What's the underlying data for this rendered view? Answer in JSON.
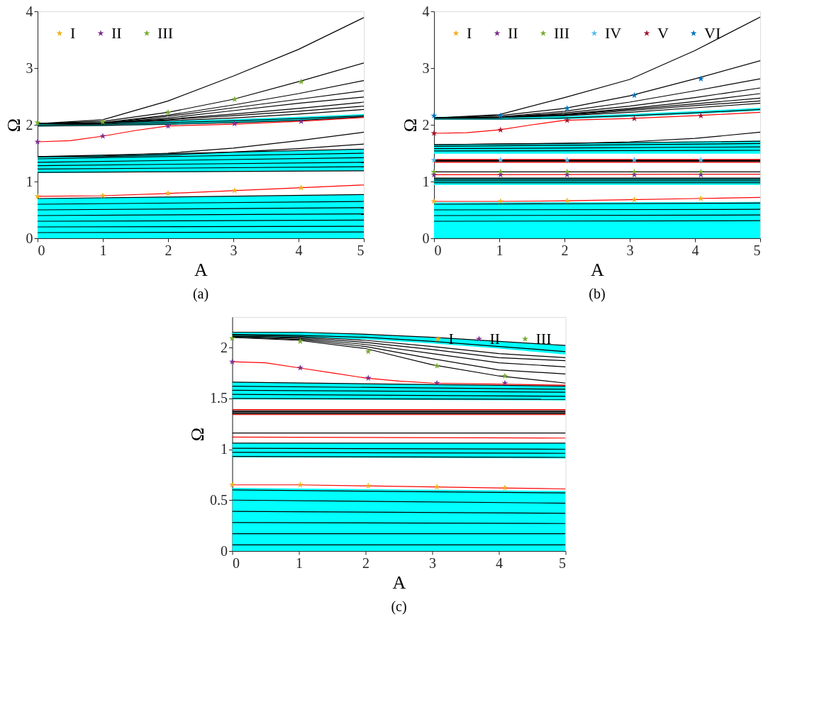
{
  "chart_data": [
    {
      "type": "line",
      "title": "(a)",
      "xlabel": "A",
      "ylabel": "Ω",
      "xlim": [
        0,
        5
      ],
      "ylim": [
        0,
        4
      ],
      "xticks": [
        0,
        1,
        2,
        3,
        4,
        5
      ],
      "yticks": [
        0,
        1,
        2,
        3,
        4
      ],
      "legend": "top left",
      "line_style": "solid",
      "series": [
        {
          "type": "line",
          "color": "#000000",
          "x": [
            0,
            5
          ],
          "values": [
            0.1,
            0.11
          ],
          "lower": [
            0,
            0
          ],
          "upper": [
            0.7,
            0.77
          ]
        },
        {
          "type": "line",
          "color": "#000000",
          "x": [
            0,
            5
          ],
          "values": [
            0.2,
            0.21
          ]
        },
        {
          "type": "line",
          "color": "#000000",
          "x": [
            0,
            5
          ],
          "values": [
            0.3,
            0.32
          ]
        },
        {
          "type": "line",
          "color": "#000000",
          "x": [
            0,
            5
          ],
          "values": [
            0.4,
            0.43
          ]
        },
        {
          "type": "line",
          "color": "#000000",
          "x": [
            0,
            5
          ],
          "values": [
            0.5,
            0.54
          ]
        },
        {
          "type": "line",
          "color": "#000000",
          "x": [
            0,
            5
          ],
          "values": [
            0.6,
            0.65
          ]
        },
        {
          "type": "line",
          "color": "#000000",
          "x": [
            0,
            5
          ],
          "values": [
            0.7,
            0.77
          ]
        },
        {
          "type": "line",
          "color": "#000000",
          "x": [
            0,
            5
          ],
          "values": [
            1.16,
            1.19
          ],
          "lower": [
            1.15,
            1.19
          ],
          "upper": [
            1.44,
            1.57
          ]
        },
        {
          "type": "line",
          "color": "#000000",
          "x": [
            0,
            5
          ],
          "values": [
            1.22,
            1.26
          ]
        },
        {
          "type": "line",
          "color": "#000000",
          "x": [
            0,
            5
          ],
          "values": [
            1.28,
            1.34
          ]
        },
        {
          "type": "line",
          "color": "#000000",
          "x": [
            0,
            5
          ],
          "values": [
            1.34,
            1.42
          ]
        },
        {
          "type": "line",
          "color": "#000000",
          "x": [
            0,
            5
          ],
          "values": [
            1.4,
            1.5
          ]
        },
        {
          "type": "line",
          "color": "#000000",
          "x": [
            0,
            5
          ],
          "values": [
            1.44,
            1.57
          ]
        },
        {
          "type": "line",
          "color": "#000000",
          "x": [
            0,
            1,
            2,
            3,
            4,
            5
          ],
          "values": [
            1.44,
            1.44,
            1.47,
            1.52,
            1.58,
            1.66
          ]
        },
        {
          "type": "line",
          "color": "#000000",
          "x": [
            0,
            1,
            2,
            3,
            4,
            5
          ],
          "values": [
            1.44,
            1.45,
            1.5,
            1.59,
            1.72,
            1.87
          ]
        },
        {
          "type": "line",
          "color": "#000000",
          "x": [
            0,
            1,
            2,
            3,
            4,
            5
          ],
          "values": [
            1.98,
            1.99,
            2.01,
            2.04,
            2.08,
            2.14
          ],
          "lower": [
            1.97,
            1.98,
            2.0,
            2.03,
            2.07,
            2.13
          ],
          "upper": [
            2.03,
            2.04,
            2.07,
            2.1,
            2.14,
            2.19
          ]
        },
        {
          "type": "line",
          "color": "#000000",
          "x": [
            0,
            1,
            2,
            3,
            4,
            5
          ],
          "values": [
            2.0,
            2.01,
            2.04,
            2.07,
            2.11,
            2.16
          ]
        },
        {
          "type": "line",
          "color": "#000000",
          "x": [
            0,
            1,
            2,
            3,
            4,
            5
          ],
          "values": [
            2.02,
            2.03,
            2.07,
            2.12,
            2.19,
            2.27
          ]
        },
        {
          "type": "line",
          "color": "#000000",
          "x": [
            0,
            1,
            2,
            3,
            4,
            5
          ],
          "values": [
            2.02,
            2.03,
            2.09,
            2.16,
            2.24,
            2.33
          ]
        },
        {
          "type": "line",
          "color": "#000000",
          "x": [
            0,
            1,
            2,
            3,
            4,
            5
          ],
          "values": [
            2.02,
            2.03,
            2.1,
            2.19,
            2.29,
            2.4
          ]
        },
        {
          "type": "line",
          "color": "#000000",
          "x": [
            0,
            1,
            2,
            3,
            4,
            5
          ],
          "values": [
            2.02,
            2.03,
            2.12,
            2.25,
            2.38,
            2.49
          ]
        },
        {
          "type": "line",
          "color": "#000000",
          "x": [
            0,
            1,
            2,
            3,
            4,
            5
          ],
          "values": [
            2.02,
            2.03,
            2.15,
            2.3,
            2.45,
            2.6
          ]
        },
        {
          "type": "line",
          "color": "#000000",
          "x": [
            0,
            1,
            2,
            3,
            4,
            5
          ],
          "values": [
            2.02,
            2.04,
            2.17,
            2.35,
            2.55,
            2.78
          ]
        },
        {
          "type": "line",
          "color": "#000000",
          "x": [
            0,
            1,
            2,
            3,
            4,
            5
          ],
          "values": [
            2.02,
            2.06,
            2.22,
            2.45,
            2.76,
            3.09
          ]
        },
        {
          "type": "line",
          "color": "#000000",
          "x": [
            0,
            1,
            2,
            3,
            4,
            5
          ],
          "values": [
            2.02,
            2.09,
            2.42,
            2.86,
            3.33,
            3.89
          ]
        },
        {
          "type": "line",
          "color": "#ff0000",
          "x": [
            0,
            1,
            2,
            3,
            4,
            5
          ],
          "values": [
            0.74,
            0.75,
            0.79,
            0.84,
            0.89,
            0.94
          ]
        },
        {
          "type": "line",
          "color": "#ff0000",
          "x": [
            0,
            0.5,
            1,
            1.5,
            2,
            3,
            4,
            5
          ],
          "values": [
            1.7,
            1.72,
            1.8,
            1.9,
            1.98,
            2.01,
            2.06,
            2.13
          ]
        },
        {
          "type": "scatter",
          "name": "I",
          "color": "#edb120",
          "marker": "star",
          "x": [
            0,
            1,
            2,
            3.02,
            4.04
          ],
          "values": [
            0.74,
            0.75,
            0.79,
            0.84,
            0.89
          ]
        },
        {
          "type": "scatter",
          "name": "II",
          "color": "#7e2f8e",
          "marker": "star",
          "x": [
            0,
            1,
            2,
            3.02,
            4.04
          ],
          "values": [
            1.7,
            1.8,
            1.98,
            2.02,
            2.06
          ]
        },
        {
          "type": "scatter",
          "name": "III",
          "color": "#77ac30",
          "marker": "star",
          "x": [
            0,
            1,
            2,
            3.02,
            4.04
          ],
          "values": [
            2.04,
            2.05,
            2.22,
            2.45,
            2.76
          ]
        }
      ]
    },
    {
      "type": "line",
      "title": "(b)",
      "xlabel": "A",
      "ylabel": "Ω",
      "xlim": [
        0,
        5
      ],
      "ylim": [
        0,
        4
      ],
      "xticks": [
        0,
        1,
        2,
        3,
        4,
        5
      ],
      "yticks": [
        0,
        1,
        2,
        3,
        4
      ],
      "legend": "top left",
      "line_style": "solid",
      "series": [
        {
          "type": "line",
          "color": "#000000",
          "x": [
            0,
            5
          ],
          "values": [
            0.3,
            0.31
          ],
          "lower": [
            0,
            0
          ],
          "upper": [
            0.63,
            0.64
          ]
        },
        {
          "type": "line",
          "color": "#000000",
          "x": [
            0,
            5
          ],
          "values": [
            0.4,
            0.41
          ]
        },
        {
          "type": "line",
          "color": "#000000",
          "x": [
            0,
            5
          ],
          "values": [
            0.5,
            0.51
          ]
        },
        {
          "type": "line",
          "color": "#000000",
          "x": [
            0,
            5
          ],
          "values": [
            0.6,
            0.62
          ]
        },
        {
          "type": "line",
          "color": "#000000",
          "x": [
            0,
            5
          ],
          "values": [
            0.98,
            0.98
          ],
          "lower": [
            0.94,
            0.94
          ],
          "upper": [
            1.06,
            1.06
          ]
        },
        {
          "type": "line",
          "color": "#000000",
          "x": [
            0,
            5
          ],
          "values": [
            1.01,
            1.01
          ]
        },
        {
          "type": "line",
          "color": "#000000",
          "x": [
            0,
            5
          ],
          "values": [
            1.04,
            1.04
          ]
        },
        {
          "type": "line",
          "color": "#000000",
          "x": [
            0,
            5
          ],
          "values": [
            1.06,
            1.06
          ]
        },
        {
          "type": "line",
          "color": "#000000",
          "x": [
            0,
            5
          ],
          "values": [
            1.17,
            1.17
          ]
        },
        {
          "type": "line",
          "color": "#000000",
          "x": [
            0,
            5
          ],
          "values": [
            1.35,
            1.35
          ]
        },
        {
          "type": "line",
          "color": "#000000",
          "x": [
            0,
            5
          ],
          "values": [
            1.36,
            1.36
          ]
        },
        {
          "type": "line",
          "color": "#000000",
          "x": [
            0,
            5
          ],
          "values": [
            1.37,
            1.37
          ]
        },
        {
          "type": "line",
          "color": "#000000",
          "x": [
            0,
            5
          ],
          "values": [
            1.38,
            1.38
          ]
        },
        {
          "type": "line",
          "color": "#000000",
          "x": [
            0,
            5
          ],
          "values": [
            1.54,
            1.55
          ],
          "lower": [
            1.49,
            1.49
          ],
          "upper": [
            1.65,
            1.72
          ]
        },
        {
          "type": "line",
          "color": "#000000",
          "x": [
            0,
            5
          ],
          "values": [
            1.58,
            1.61
          ]
        },
        {
          "type": "line",
          "color": "#000000",
          "x": [
            0,
            5
          ],
          "values": [
            1.62,
            1.67
          ]
        },
        {
          "type": "line",
          "color": "#000000",
          "x": [
            0,
            5
          ],
          "values": [
            1.65,
            1.71
          ]
        },
        {
          "type": "line",
          "color": "#000000",
          "x": [
            0,
            1,
            2,
            3,
            4,
            5
          ],
          "values": [
            1.65,
            1.66,
            1.67,
            1.7,
            1.76,
            1.87
          ]
        },
        {
          "type": "line",
          "color": "#000000",
          "x": [
            0,
            1,
            2,
            3,
            4,
            5
          ],
          "values": [
            2.1,
            2.1,
            2.12,
            2.16,
            2.21,
            2.27
          ],
          "lower": [
            2.09,
            2.09,
            2.1,
            2.14,
            2.19,
            2.25
          ],
          "upper": [
            2.14,
            2.14,
            2.15,
            2.19,
            2.24,
            2.3
          ]
        },
        {
          "type": "line",
          "color": "#000000",
          "x": [
            0,
            1,
            2,
            3,
            4,
            5
          ],
          "values": [
            2.12,
            2.13,
            2.16,
            2.22,
            2.3,
            2.38
          ]
        },
        {
          "type": "line",
          "color": "#000000",
          "x": [
            0,
            1,
            2,
            3,
            4,
            5
          ],
          "values": [
            2.12,
            2.13,
            2.17,
            2.25,
            2.34,
            2.42
          ]
        },
        {
          "type": "line",
          "color": "#000000",
          "x": [
            0,
            1,
            2,
            3,
            4,
            5
          ],
          "values": [
            2.12,
            2.13,
            2.18,
            2.27,
            2.37,
            2.47
          ]
        },
        {
          "type": "line",
          "color": "#000000",
          "x": [
            0,
            1,
            2,
            3,
            4,
            5
          ],
          "values": [
            2.12,
            2.13,
            2.19,
            2.29,
            2.41,
            2.55
          ]
        },
        {
          "type": "line",
          "color": "#000000",
          "x": [
            0,
            1,
            2,
            3,
            4,
            5
          ],
          "values": [
            2.12,
            2.13,
            2.21,
            2.33,
            2.48,
            2.65
          ]
        },
        {
          "type": "line",
          "color": "#000000",
          "x": [
            0,
            1,
            2,
            3,
            4,
            5
          ],
          "values": [
            2.12,
            2.14,
            2.24,
            2.4,
            2.6,
            2.81
          ]
        },
        {
          "type": "line",
          "color": "#000000",
          "x": [
            0,
            1,
            2,
            3,
            4,
            5
          ],
          "values": [
            2.12,
            2.16,
            2.29,
            2.51,
            2.81,
            3.13
          ]
        },
        {
          "type": "line",
          "color": "#000000",
          "x": [
            0,
            1,
            2,
            3,
            4,
            5
          ],
          "values": [
            2.12,
            2.18,
            2.48,
            2.8,
            3.31,
            3.9
          ]
        },
        {
          "type": "line",
          "color": "#ff0000",
          "x": [
            0,
            1,
            2,
            3,
            4,
            5
          ],
          "values": [
            0.65,
            0.65,
            0.66,
            0.68,
            0.7,
            0.72
          ]
        },
        {
          "type": "line",
          "color": "#ff0000",
          "x": [
            0,
            5
          ],
          "values": [
            1.12,
            1.13
          ]
        },
        {
          "type": "line",
          "color": "#ff0000",
          "x": [
            0,
            5
          ],
          "values": [
            1.34,
            1.34
          ]
        },
        {
          "type": "line",
          "color": "#ff0000",
          "x": [
            0,
            5
          ],
          "values": [
            1.39,
            1.39
          ]
        },
        {
          "type": "line",
          "color": "#ff0000",
          "x": [
            0,
            0.5,
            1,
            1.5,
            2,
            3,
            4,
            5
          ],
          "values": [
            1.85,
            1.86,
            1.91,
            2.0,
            2.08,
            2.11,
            2.16,
            2.22
          ]
        },
        {
          "type": "scatter",
          "name": "I",
          "color": "#edb120",
          "marker": "star",
          "x": [
            0,
            1.02,
            2.04,
            3.07,
            4.09
          ],
          "values": [
            0.65,
            0.65,
            0.66,
            0.68,
            0.7
          ]
        },
        {
          "type": "scatter",
          "name": "II",
          "color": "#7e2f8e",
          "marker": "star",
          "x": [
            0,
            1.02,
            2.04,
            3.07,
            4.09
          ],
          "values": [
            1.12,
            1.12,
            1.12,
            1.12,
            1.12
          ]
        },
        {
          "type": "scatter",
          "name": "III",
          "color": "#77ac30",
          "marker": "star",
          "x": [
            0,
            1.02,
            2.04,
            3.07,
            4.09
          ],
          "values": [
            1.17,
            1.17,
            1.17,
            1.17,
            1.17
          ]
        },
        {
          "type": "scatter",
          "name": "IV",
          "color": "#4dbeee",
          "marker": "star",
          "x": [
            0,
            1.02,
            2.04,
            3.07,
            4.09
          ],
          "values": [
            1.38,
            1.38,
            1.38,
            1.38,
            1.38
          ]
        },
        {
          "type": "scatter",
          "name": "V",
          "color": "#a2142f",
          "marker": "star",
          "x": [
            0,
            1.02,
            2.04,
            3.07,
            4.09
          ],
          "values": [
            1.85,
            1.91,
            2.08,
            2.11,
            2.16
          ]
        },
        {
          "type": "scatter",
          "name": "VI",
          "color": "#0072bd",
          "marker": "star",
          "x": [
            0,
            1.02,
            2.04,
            3.07,
            4.09
          ],
          "values": [
            2.16,
            2.16,
            2.29,
            2.52,
            2.81
          ]
        }
      ]
    },
    {
      "type": "line",
      "title": "(c)",
      "xlabel": "A",
      "ylabel": "Ω",
      "xlim": [
        0,
        5
      ],
      "ylim": [
        0,
        2.3
      ],
      "xticks": [
        0,
        1,
        2,
        3,
        4,
        5
      ],
      "yticks": [
        0,
        0.5,
        1,
        1.5,
        2
      ],
      "legend": "top right",
      "line_style": "solid",
      "series": [
        {
          "type": "line",
          "color": "#000000",
          "x": [
            0,
            5
          ],
          "values": [
            0.06,
            0.06
          ],
          "lower": [
            0,
            0
          ],
          "upper": [
            0.62,
            0.59
          ]
        },
        {
          "type": "line",
          "color": "#000000",
          "x": [
            0,
            5
          ],
          "values": [
            0.17,
            0.17
          ]
        },
        {
          "type": "line",
          "color": "#000000",
          "x": [
            0,
            5
          ],
          "values": [
            0.28,
            0.27
          ]
        },
        {
          "type": "line",
          "color": "#000000",
          "x": [
            0,
            5
          ],
          "values": [
            0.39,
            0.37
          ]
        },
        {
          "type": "line",
          "color": "#000000",
          "x": [
            0,
            5
          ],
          "values": [
            0.5,
            0.47
          ]
        },
        {
          "type": "line",
          "color": "#000000",
          "x": [
            0,
            5
          ],
          "values": [
            0.6,
            0.57
          ]
        },
        {
          "type": "line",
          "color": "#000000",
          "x": [
            0,
            5
          ],
          "values": [
            0.93,
            0.92
          ],
          "lower": [
            0.92,
            0.91
          ],
          "upper": [
            1.06,
            1.06
          ]
        },
        {
          "type": "line",
          "color": "#000000",
          "x": [
            0,
            5
          ],
          "values": [
            0.97,
            0.96
          ]
        },
        {
          "type": "line",
          "color": "#000000",
          "x": [
            0,
            5
          ],
          "values": [
            1.01,
            1.0
          ]
        },
        {
          "type": "line",
          "color": "#000000",
          "x": [
            0,
            5
          ],
          "values": [
            1.06,
            1.06
          ]
        },
        {
          "type": "line",
          "color": "#000000",
          "x": [
            0,
            5
          ],
          "values": [
            1.16,
            1.16
          ]
        },
        {
          "type": "line",
          "color": "#000000",
          "x": [
            0,
            5
          ],
          "values": [
            1.35,
            1.35
          ]
        },
        {
          "type": "line",
          "color": "#000000",
          "x": [
            0,
            5
          ],
          "values": [
            1.36,
            1.36
          ]
        },
        {
          "type": "line",
          "color": "#000000",
          "x": [
            0,
            5
          ],
          "values": [
            1.37,
            1.37
          ]
        },
        {
          "type": "line",
          "color": "#000000",
          "x": [
            0,
            5
          ],
          "values": [
            1.38,
            1.38
          ]
        },
        {
          "type": "line",
          "color": "#000000",
          "x": [
            0,
            5
          ],
          "values": [
            1.5,
            1.49
          ],
          "lower": [
            1.49,
            1.48
          ],
          "upper": [
            1.66,
            1.62
          ]
        },
        {
          "type": "line",
          "color": "#000000",
          "x": [
            0,
            5
          ],
          "values": [
            1.54,
            1.52
          ]
        },
        {
          "type": "line",
          "color": "#000000",
          "x": [
            0,
            5
          ],
          "values": [
            1.58,
            1.56
          ]
        },
        {
          "type": "line",
          "color": "#000000",
          "x": [
            0,
            5
          ],
          "values": [
            1.62,
            1.59
          ]
        },
        {
          "type": "line",
          "color": "#000000",
          "x": [
            0,
            5
          ],
          "values": [
            1.66,
            1.62
          ]
        },
        {
          "type": "line",
          "color": "#000000",
          "x": [
            0,
            1,
            2,
            3,
            4,
            5
          ],
          "values": [
            2.1,
            2.07,
            1.99,
            1.83,
            1.72,
            1.65
          ],
          "lower": [
            2.1,
            2.1,
            2.08,
            2.04,
            1.99,
            1.93
          ],
          "upper": [
            2.15,
            2.15,
            2.13,
            2.1,
            2.06,
            2.02
          ]
        },
        {
          "type": "line",
          "color": "#000000",
          "x": [
            0,
            1,
            2,
            3,
            4,
            5
          ],
          "values": [
            2.1,
            2.08,
            2.01,
            1.89,
            1.78,
            1.74
          ]
        },
        {
          "type": "line",
          "color": "#000000",
          "x": [
            0,
            1,
            2,
            3,
            4,
            5
          ],
          "values": [
            2.11,
            2.09,
            2.03,
            1.94,
            1.85,
            1.81
          ]
        },
        {
          "type": "line",
          "color": "#000000",
          "x": [
            0,
            1,
            2,
            3,
            4,
            5
          ],
          "values": [
            2.11,
            2.1,
            2.05,
            1.98,
            1.9,
            1.87
          ]
        },
        {
          "type": "line",
          "color": "#000000",
          "x": [
            0,
            1,
            2,
            3,
            4,
            5
          ],
          "values": [
            2.12,
            2.11,
            2.07,
            2.01,
            1.94,
            1.9
          ]
        },
        {
          "type": "line",
          "color": "#000000",
          "x": [
            0,
            1,
            2,
            3,
            4,
            5
          ],
          "values": [
            2.13,
            2.12,
            2.1,
            2.06,
            2.01,
            1.96
          ]
        },
        {
          "type": "line",
          "color": "#000000",
          "x": [
            0,
            1,
            2,
            3,
            4,
            5
          ],
          "values": [
            2.15,
            2.15,
            2.13,
            2.1,
            2.06,
            2.02
          ]
        },
        {
          "type": "line",
          "color": "#ff0000",
          "x": [
            0,
            1,
            2,
            3,
            4,
            5
          ],
          "values": [
            0.65,
            0.65,
            0.64,
            0.63,
            0.62,
            0.61
          ]
        },
        {
          "type": "line",
          "color": "#ff0000",
          "x": [
            0,
            5
          ],
          "values": [
            1.12,
            1.11
          ]
        },
        {
          "type": "line",
          "color": "#ff0000",
          "x": [
            0,
            5
          ],
          "values": [
            1.34,
            1.34
          ]
        },
        {
          "type": "line",
          "color": "#ff0000",
          "x": [
            0,
            5
          ],
          "values": [
            1.39,
            1.39
          ]
        },
        {
          "type": "line",
          "color": "#ff0000",
          "x": [
            0,
            0.5,
            1,
            1.5,
            2,
            2.5,
            3,
            4,
            5
          ],
          "values": [
            1.86,
            1.85,
            1.8,
            1.75,
            1.7,
            1.67,
            1.65,
            1.64,
            1.63
          ]
        },
        {
          "type": "scatter",
          "name": "I",
          "color": "#edb120",
          "marker": "star",
          "x": [
            0,
            1.02,
            2.04,
            3.07,
            4.09
          ],
          "values": [
            0.65,
            0.65,
            0.64,
            0.63,
            0.62
          ]
        },
        {
          "type": "scatter",
          "name": "II",
          "color": "#7e2f8e",
          "marker": "star",
          "x": [
            0,
            1.02,
            2.04,
            3.07,
            4.09
          ],
          "values": [
            1.86,
            1.8,
            1.7,
            1.65,
            1.65
          ]
        },
        {
          "type": "scatter",
          "name": "III",
          "color": "#77ac30",
          "marker": "star",
          "x": [
            0,
            1.02,
            2.04,
            3.07,
            4.09
          ],
          "values": [
            2.09,
            2.06,
            1.96,
            1.82,
            1.72
          ]
        }
      ]
    }
  ]
}
